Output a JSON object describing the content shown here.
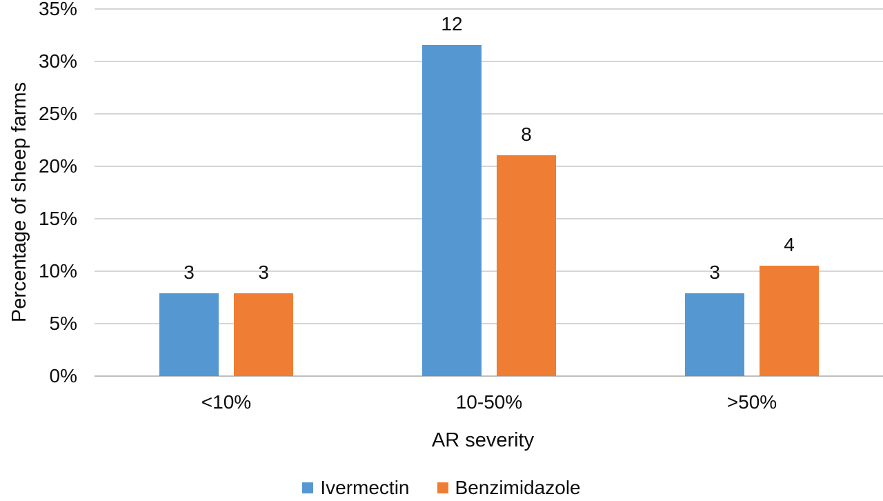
{
  "chart_data": {
    "type": "bar",
    "title": "",
    "xlabel": "AR severity",
    "ylabel": "Percentage of sheep farms",
    "categories": [
      "<10%",
      "10-50%",
      ">50%"
    ],
    "series": [
      {
        "name": "Ivermectin",
        "color": "#5598D1",
        "counts": [
          3,
          12,
          3
        ],
        "percent_values": [
          7.89,
          31.58,
          7.89
        ]
      },
      {
        "name": "Benzimidazole",
        "color": "#EF7D33",
        "counts": [
          3,
          8,
          4
        ],
        "percent_values": [
          7.89,
          21.05,
          10.53
        ]
      }
    ],
    "bar_labels": [
      [
        "3",
        "12",
        "3"
      ],
      [
        "3",
        "8",
        "4"
      ]
    ],
    "y_ticks": [
      "0%",
      "5%",
      "10%",
      "15%",
      "20%",
      "25%",
      "30%",
      "35%"
    ],
    "ylim": [
      0,
      35
    ],
    "grid": true,
    "gridline_color": "#d5d5d5",
    "axis_line_color": "#bfbfbf",
    "legend_position": "bottom"
  }
}
